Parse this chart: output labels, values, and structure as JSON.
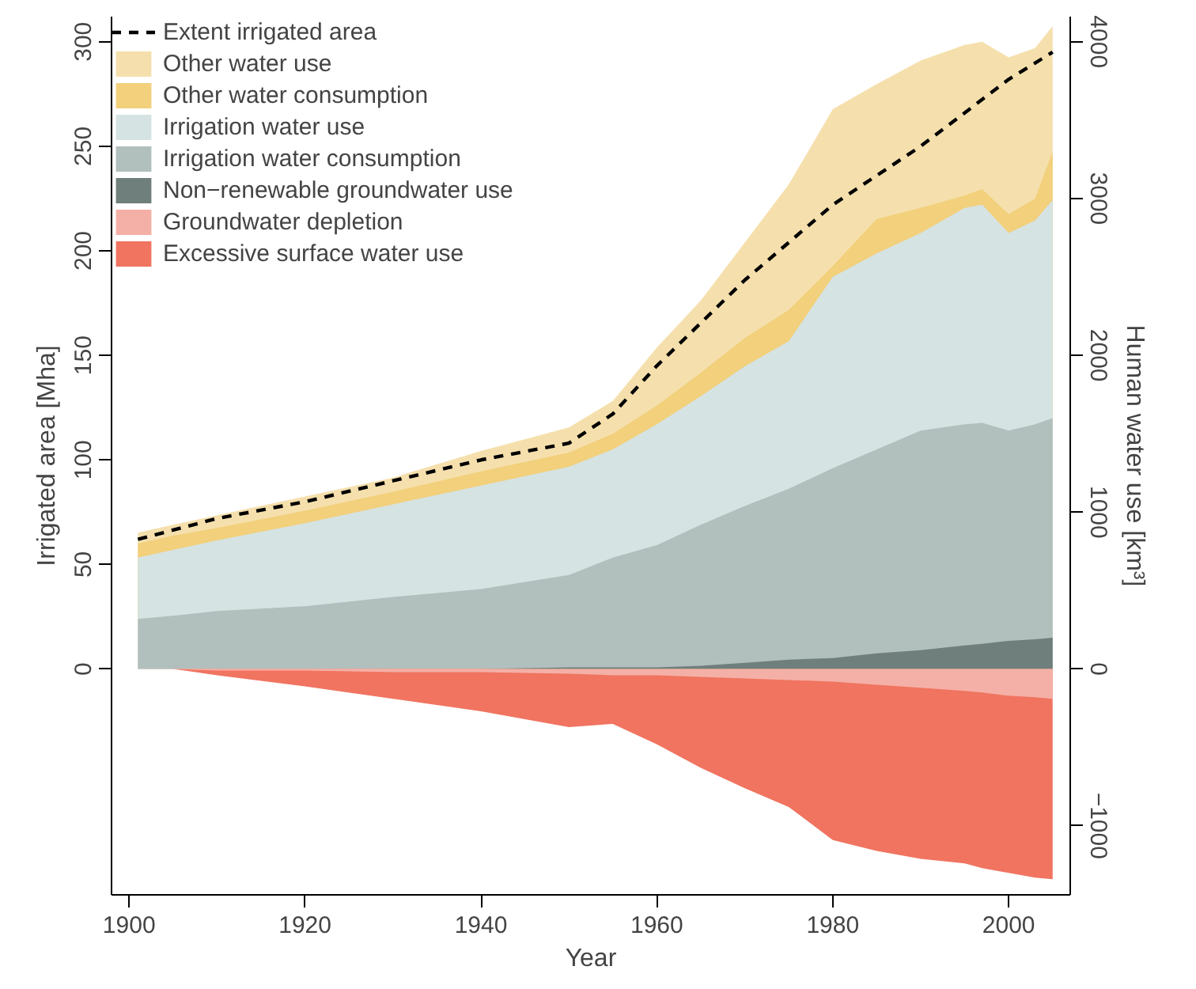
{
  "chart_data": {
    "type": "area",
    "xlabel": "Year",
    "ylabel": "Irrigated area [Mha]",
    "y2label": "Human water use [km³]",
    "x": [
      1901,
      1905,
      1910,
      1920,
      1930,
      1940,
      1950,
      1955,
      1960,
      1965,
      1970,
      1975,
      1980,
      1985,
      1990,
      1995,
      1997,
      2000,
      2003,
      2005
    ],
    "series": [
      {
        "name": "Extent irrigated area",
        "type": "line",
        "axis": "y",
        "color": "#000000",
        "line_style": "dashed",
        "x": [
          1901,
          1910,
          1920,
          1930,
          1940,
          1950,
          1955,
          1960,
          1970,
          1980,
          1990,
          2000,
          2005
        ],
        "values": [
          62,
          72,
          80,
          90,
          100,
          108,
          122,
          145,
          186,
          222,
          250,
          282,
          295
        ]
      },
      {
        "name": "Other water use",
        "axis": "y2",
        "color": "#f5e0ad",
        "values": [
          870,
          920,
          980,
          1100,
          1220,
          1390,
          1540,
          1710,
          2050,
          2350,
          2720,
          3090,
          3570,
          3730,
          3880,
          3980,
          4000,
          3900,
          3960,
          4100
        ]
      },
      {
        "name": "Other water consumption",
        "axis": "y2",
        "color": "#f2d07c",
        "values": [
          800,
          850,
          900,
          1010,
          1130,
          1260,
          1380,
          1500,
          1680,
          1890,
          2110,
          2290,
          2570,
          2870,
          2940,
          3020,
          3060,
          2900,
          3000,
          3300
        ]
      },
      {
        "name": "Irrigation water use",
        "axis": "y2",
        "color": "#d5e3e3",
        "values": [
          710,
          760,
          820,
          930,
          1050,
          1170,
          1290,
          1400,
          1560,
          1740,
          1930,
          2090,
          2500,
          2650,
          2780,
          2940,
          2960,
          2780,
          2860,
          2990
        ]
      },
      {
        "name": "Irrigation water consumption",
        "axis": "y2",
        "color": "#b1bfbd",
        "values": [
          320,
          340,
          370,
          400,
          460,
          510,
          600,
          710,
          790,
          920,
          1040,
          1150,
          1280,
          1400,
          1520,
          1560,
          1570,
          1520,
          1560,
          1600
        ]
      },
      {
        "name": "Non−renewable groundwater use",
        "axis": "y2",
        "color": "#6f7f7b",
        "values": [
          0,
          0,
          0,
          0,
          0,
          0,
          10,
          10,
          10,
          20,
          40,
          60,
          70,
          100,
          120,
          150,
          160,
          180,
          190,
          200
        ]
      },
      {
        "name": "Groundwater depletion",
        "axis": "y2",
        "color": "#f4b0a6",
        "values": [
          0,
          0,
          -10,
          -10,
          -20,
          -20,
          -30,
          -40,
          -40,
          -50,
          -60,
          -70,
          -80,
          -100,
          -120,
          -140,
          -150,
          -170,
          -180,
          -190
        ]
      },
      {
        "name": "Excessive surface water use",
        "axis": "y2",
        "color": "#f07460",
        "values": [
          0,
          0,
          -40,
          -110,
          -190,
          -270,
          -370,
          -350,
          -480,
          -630,
          -760,
          -880,
          -1090,
          -1160,
          -1210,
          -1240,
          -1270,
          -1300,
          -1330,
          -1340
        ]
      }
    ],
    "xlim": [
      1898,
      2007
    ],
    "xticks": [
      1900,
      1920,
      1940,
      1960,
      1980,
      2000
    ],
    "ylim": [
      -108,
      312
    ],
    "yticks": [
      0,
      50,
      100,
      150,
      200,
      250,
      300
    ],
    "y2lim": [
      -1440,
      4160
    ],
    "y2ticks": [
      -1000,
      0,
      1000,
      2000,
      3000,
      4000
    ],
    "grid": false,
    "legend": "top left"
  }
}
